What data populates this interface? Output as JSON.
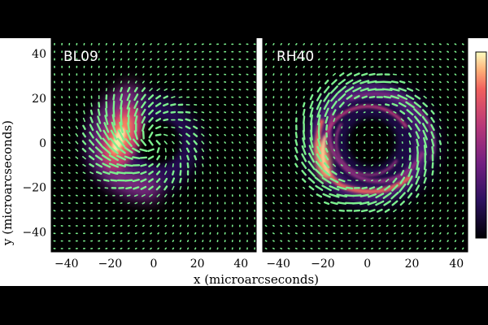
{
  "chart_data": [
    {
      "type": "heatmap",
      "panel_label": "BL09",
      "xlim": [
        -47,
        47
      ],
      "ylim": [
        -49,
        47
      ],
      "xticks": [
        -40,
        -20,
        0,
        20,
        40
      ],
      "yticks": [
        -40,
        -20,
        0,
        20,
        40
      ],
      "colormap": "magma",
      "vector_color": "#7CF08E",
      "emission_peak": {
        "x": -14,
        "y": 2
      },
      "morphology": "one-sided crescent brightest on left"
    },
    {
      "type": "heatmap",
      "panel_label": "RH40",
      "xlim": [
        -47,
        45
      ],
      "ylim": [
        -49,
        47
      ],
      "xticks": [
        -40,
        -20,
        0,
        20,
        40
      ],
      "yticks": [
        -40,
        -20,
        0,
        20,
        40
      ],
      "colormap": "magma",
      "vector_color": "#7CF08E",
      "emission_peak": {
        "x": -19,
        "y": -5
      },
      "morphology": "ring with spiral arms"
    }
  ],
  "axes": {
    "xlabel": "x (microarcseconds)",
    "ylabel": "y (microarcseconds)"
  },
  "colorbar": {
    "colormap": "magma",
    "orientation": "vertical",
    "tick_labels": []
  }
}
